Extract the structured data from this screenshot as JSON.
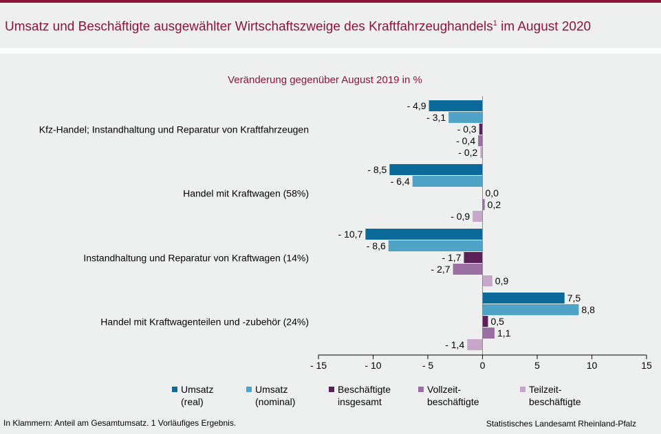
{
  "header": {
    "title": "Umsatz und  Beschäftigte ausgewählter Wirtschaftszweige des Kraftfahrzeughandels",
    "title_sup": "1",
    "title_suffix": " im August 2020"
  },
  "footer": {
    "note": "In Klammern:  Anteil am Gesamtumsatz.  1 Vorläufiges  Ergebnis.",
    "source": "Statistisches Landesamt Rheinland-Pfalz"
  },
  "chart_data": {
    "type": "bar",
    "orientation": "horizontal",
    "subtitle": "Veränderung  gegenüber  August 2019 in %",
    "categories": [
      "Kfz-Handel; Instandhaltung und Reparatur von Kraftfahrzeugen",
      "Handel mit Kraftwagen (58%)",
      "Instandhaltung und Reparatur von Kraftwagen (14%)",
      "Handel mit Kraftwagenteilen und -zubehör (24%)"
    ],
    "series": [
      {
        "name": "Umsatz (real)",
        "legend_lines": [
          "Umsatz",
          "(real)"
        ],
        "color": "#0b6a9a",
        "values": [
          -4.9,
          -8.5,
          -10.7,
          7.5
        ],
        "labels": [
          "- 4,9",
          "- 8,5",
          "- 10,7",
          "7,5"
        ]
      },
      {
        "name": "Umsatz (nominal)",
        "legend_lines": [
          "Umsatz",
          "(nominal)"
        ],
        "color": "#4fa3c7",
        "values": [
          -3.1,
          -6.4,
          -8.6,
          8.8
        ],
        "labels": [
          "- 3,1",
          "- 6,4",
          "- 8,6",
          "8,8"
        ]
      },
      {
        "name": "Beschäftigte insgesamt",
        "legend_lines": [
          "Beschäftigte",
          "insgesamt"
        ],
        "color": "#5a2057",
        "values": [
          -0.3,
          0.0,
          -1.7,
          0.5
        ],
        "labels": [
          "- 0,3",
          "0,0",
          "- 1,7",
          "0,5"
        ]
      },
      {
        "name": "Vollzeitbeschäftigte",
        "legend_lines": [
          "Vollzeit-",
          "beschäftigte"
        ],
        "color": "#9a6fa2",
        "values": [
          -0.4,
          0.2,
          -2.7,
          1.1
        ],
        "labels": [
          "- 0,4",
          "0,2",
          "- 2,7",
          "1,1"
        ]
      },
      {
        "name": "Teilzeitbeschäftigte",
        "legend_lines": [
          "Teilzeit-",
          "beschäftigte"
        ],
        "color": "#c6a7c9",
        "values": [
          -0.2,
          -0.9,
          0.9,
          -1.4
        ],
        "labels": [
          "- 0,2",
          "- 0,9",
          "0,9",
          "- 1,4"
        ]
      }
    ],
    "xlim": [
      -15,
      15
    ],
    "xticks": [
      -15,
      -10,
      -5,
      0,
      5,
      10,
      15
    ],
    "xtick_labels": [
      "- 15",
      "- 10",
      "- 5",
      "0",
      "5",
      "10",
      "15"
    ],
    "grid": false,
    "legend_position": "bottom"
  }
}
